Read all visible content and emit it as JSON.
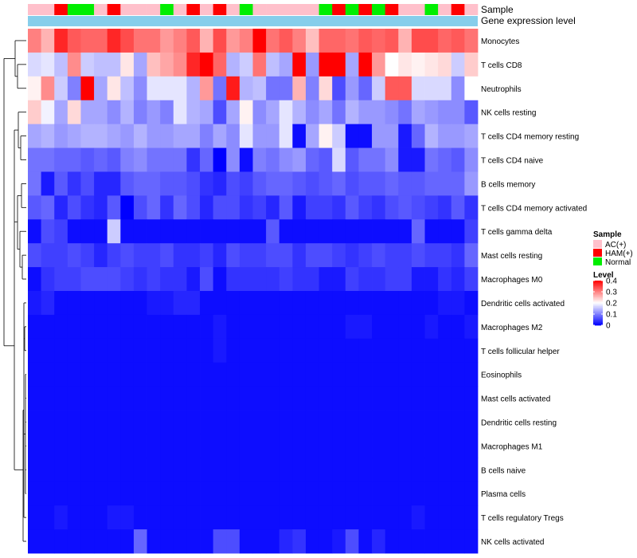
{
  "chart_data": {
    "type": "heatmap",
    "title": "",
    "annotation_tracks": [
      "Sample",
      "Gene expression level"
    ],
    "sample_groups": [
      "AC(+)",
      "AC(+)",
      "HAM(+)",
      "Normal",
      "Normal",
      "AC(+)",
      "HAM(+)",
      "AC(+)",
      "AC(+)",
      "AC(+)",
      "Normal",
      "AC(+)",
      "HAM(+)",
      "AC(+)",
      "HAM(+)",
      "AC(+)",
      "Normal",
      "AC(+)",
      "AC(+)",
      "AC(+)",
      "AC(+)",
      "AC(+)",
      "Normal",
      "HAM(+)",
      "Normal",
      "HAM(+)",
      "Normal",
      "HAM(+)",
      "AC(+)",
      "AC(+)",
      "Normal",
      "AC(+)",
      "HAM(+)",
      "AC(+)"
    ],
    "expression_level_track": "uniform",
    "rows": [
      "Monocytes",
      "T cells CD8",
      "Neutrophils",
      "NK cells resting",
      "T cells CD4 memory resting",
      "T cells CD4 naive",
      "B cells memory",
      "T cells CD4 memory activated",
      "T cells gamma delta",
      "Mast cells resting",
      "Macrophages M0",
      "Dendritic cells activated",
      "Macrophages M2",
      "T cells follicular helper",
      "Eosinophils",
      "Mast cells activated",
      "Dendritic cells resting",
      "Macrophages M1",
      "B cells naive",
      "Plasma cells",
      "T cells regulatory  Tregs",
      "NK cells activated"
    ],
    "values": [
      [
        0.3,
        0.26,
        0.37,
        0.33,
        0.32,
        0.32,
        0.37,
        0.34,
        0.31,
        0.31,
        0.28,
        0.3,
        0.33,
        0.26,
        0.34,
        0.28,
        0.3,
        0.4,
        0.31,
        0.33,
        0.3,
        0.25,
        0.32,
        0.32,
        0.31,
        0.33,
        0.32,
        0.33,
        0.26,
        0.34,
        0.34,
        0.32,
        0.33,
        0.31
      ],
      [
        0.17,
        0.18,
        0.15,
        0.29,
        0.16,
        0.15,
        0.15,
        0.22,
        0.13,
        0.25,
        0.27,
        0.29,
        0.37,
        0.4,
        0.32,
        0.14,
        0.16,
        0.31,
        0.15,
        0.13,
        0.4,
        0.12,
        0.4,
        0.4,
        0.13,
        0.4,
        0.28,
        0.2,
        0.22,
        0.21,
        0.22,
        0.23,
        0.16,
        0.24
      ],
      [
        0.21,
        0.29,
        0.16,
        0.1,
        0.4,
        0.13,
        0.22,
        0.15,
        0.11,
        0.18,
        0.18,
        0.18,
        0.14,
        0.28,
        0.09,
        0.38,
        0.14,
        0.15,
        0.09,
        0.09,
        0.26,
        0.1,
        0.23,
        0.06,
        0.12,
        0.08,
        0.16,
        0.33,
        0.33,
        0.17,
        0.17,
        0.17,
        0.11,
        0.2
      ],
      [
        0.24,
        0.19,
        0.13,
        0.23,
        0.13,
        0.13,
        0.11,
        0.14,
        0.1,
        0.12,
        0.1,
        0.18,
        0.14,
        0.13,
        0.06,
        0.13,
        0.21,
        0.11,
        0.13,
        0.18,
        0.14,
        0.11,
        0.13,
        0.09,
        0.14,
        0.12,
        0.12,
        0.11,
        0.09,
        0.13,
        0.12,
        0.11,
        0.11,
        0.07
      ],
      [
        0.13,
        0.14,
        0.12,
        0.13,
        0.14,
        0.14,
        0.13,
        0.12,
        0.14,
        0.12,
        0.12,
        0.13,
        0.13,
        0.1,
        0.13,
        0.11,
        0.18,
        0.12,
        0.12,
        0.18,
        0.01,
        0.13,
        0.21,
        0.16,
        0.01,
        0.01,
        0.12,
        0.12,
        0.02,
        0.08,
        0.14,
        0.12,
        0.12,
        0.13
      ],
      [
        0.09,
        0.09,
        0.08,
        0.08,
        0.07,
        0.08,
        0.07,
        0.1,
        0.11,
        0.09,
        0.09,
        0.09,
        0.04,
        0.08,
        0.0,
        0.11,
        0.01,
        0.1,
        0.09,
        0.11,
        0.12,
        0.08,
        0.07,
        0.17,
        0.07,
        0.09,
        0.09,
        0.11,
        0.02,
        0.02,
        0.09,
        0.08,
        0.07,
        0.11
      ],
      [
        0.09,
        0.02,
        0.07,
        0.04,
        0.06,
        0.03,
        0.03,
        0.07,
        0.08,
        0.08,
        0.07,
        0.07,
        0.06,
        0.04,
        0.03,
        0.06,
        0.05,
        0.07,
        0.08,
        0.08,
        0.07,
        0.06,
        0.07,
        0.08,
        0.06,
        0.07,
        0.07,
        0.08,
        0.07,
        0.07,
        0.08,
        0.08,
        0.08,
        0.12
      ],
      [
        0.07,
        0.08,
        0.03,
        0.06,
        0.04,
        0.03,
        0.07,
        0.0,
        0.06,
        0.08,
        0.04,
        0.08,
        0.06,
        0.03,
        0.06,
        0.06,
        0.04,
        0.05,
        0.03,
        0.07,
        0.02,
        0.05,
        0.05,
        0.04,
        0.07,
        0.05,
        0.04,
        0.06,
        0.07,
        0.06,
        0.05,
        0.04,
        0.07,
        0.04
      ],
      [
        0.01,
        0.06,
        0.05,
        0.01,
        0.01,
        0.01,
        0.16,
        0.01,
        0.01,
        0.01,
        0.01,
        0.01,
        0.01,
        0.01,
        0.01,
        0.01,
        0.01,
        0.01,
        0.07,
        0.01,
        0.01,
        0.01,
        0.01,
        0.01,
        0.01,
        0.01,
        0.01,
        0.01,
        0.01,
        0.08,
        0.01,
        0.01,
        0.01,
        0.05
      ],
      [
        0.06,
        0.05,
        0.05,
        0.06,
        0.05,
        0.03,
        0.05,
        0.06,
        0.05,
        0.05,
        0.06,
        0.04,
        0.04,
        0.05,
        0.03,
        0.06,
        0.05,
        0.05,
        0.06,
        0.06,
        0.04,
        0.06,
        0.06,
        0.05,
        0.04,
        0.05,
        0.06,
        0.05,
        0.05,
        0.06,
        0.05,
        0.05,
        0.04,
        0.08
      ],
      [
        0.01,
        0.04,
        0.05,
        0.05,
        0.06,
        0.06,
        0.06,
        0.05,
        0.04,
        0.05,
        0.04,
        0.04,
        0.02,
        0.06,
        0.01,
        0.04,
        0.04,
        0.04,
        0.04,
        0.05,
        0.04,
        0.04,
        0.02,
        0.02,
        0.05,
        0.04,
        0.04,
        0.05,
        0.05,
        0.02,
        0.02,
        0.04,
        0.03,
        0.05
      ],
      [
        0.02,
        0.03,
        0.01,
        0.01,
        0.01,
        0.01,
        0.01,
        0.01,
        0.01,
        0.02,
        0.02,
        0.03,
        0.03,
        0.01,
        0.01,
        0.01,
        0.01,
        0.01,
        0.01,
        0.01,
        0.01,
        0.01,
        0.01,
        0.01,
        0.01,
        0.01,
        0.01,
        0.01,
        0.01,
        0.01,
        0.01,
        0.02,
        0.02,
        0.01
      ],
      [
        0.01,
        0.01,
        0.01,
        0.01,
        0.01,
        0.01,
        0.01,
        0.01,
        0.01,
        0.01,
        0.01,
        0.01,
        0.01,
        0.01,
        0.02,
        0.01,
        0.01,
        0.01,
        0.01,
        0.01,
        0.01,
        0.01,
        0.01,
        0.01,
        0.02,
        0.02,
        0.01,
        0.01,
        0.01,
        0.01,
        0.02,
        0.01,
        0.01,
        0.02
      ],
      [
        0.01,
        0.01,
        0.01,
        0.01,
        0.01,
        0.01,
        0.01,
        0.01,
        0.01,
        0.01,
        0.01,
        0.01,
        0.01,
        0.01,
        0.02,
        0.01,
        0.01,
        0.01,
        0.01,
        0.01,
        0.01,
        0.01,
        0.01,
        0.01,
        0.01,
        0.01,
        0.01,
        0.01,
        0.01,
        0.01,
        0.01,
        0.01,
        0.01,
        0.01
      ],
      [
        0.01,
        0.01,
        0.01,
        0.01,
        0.01,
        0.01,
        0.01,
        0.01,
        0.01,
        0.01,
        0.01,
        0.01,
        0.01,
        0.01,
        0.01,
        0.01,
        0.01,
        0.01,
        0.01,
        0.01,
        0.01,
        0.01,
        0.01,
        0.01,
        0.01,
        0.01,
        0.01,
        0.01,
        0.01,
        0.01,
        0.01,
        0.01,
        0.01,
        0.01
      ],
      [
        0.01,
        0.01,
        0.01,
        0.01,
        0.01,
        0.01,
        0.01,
        0.01,
        0.01,
        0.01,
        0.01,
        0.01,
        0.01,
        0.01,
        0.01,
        0.01,
        0.01,
        0.01,
        0.01,
        0.01,
        0.01,
        0.01,
        0.01,
        0.01,
        0.01,
        0.01,
        0.01,
        0.01,
        0.01,
        0.01,
        0.01,
        0.01,
        0.01,
        0.01
      ],
      [
        0.01,
        0.01,
        0.01,
        0.01,
        0.01,
        0.01,
        0.01,
        0.01,
        0.01,
        0.01,
        0.01,
        0.01,
        0.01,
        0.01,
        0.01,
        0.01,
        0.01,
        0.01,
        0.01,
        0.01,
        0.01,
        0.01,
        0.01,
        0.01,
        0.01,
        0.01,
        0.01,
        0.01,
        0.01,
        0.01,
        0.01,
        0.01,
        0.01,
        0.01
      ],
      [
        0.01,
        0.01,
        0.01,
        0.01,
        0.01,
        0.01,
        0.01,
        0.01,
        0.01,
        0.01,
        0.01,
        0.01,
        0.01,
        0.01,
        0.01,
        0.01,
        0.01,
        0.01,
        0.01,
        0.01,
        0.01,
        0.01,
        0.01,
        0.01,
        0.01,
        0.01,
        0.01,
        0.01,
        0.01,
        0.01,
        0.01,
        0.01,
        0.01,
        0.01
      ],
      [
        0.01,
        0.01,
        0.01,
        0.01,
        0.01,
        0.01,
        0.01,
        0.01,
        0.01,
        0.01,
        0.01,
        0.01,
        0.01,
        0.01,
        0.01,
        0.01,
        0.01,
        0.01,
        0.01,
        0.01,
        0.01,
        0.01,
        0.01,
        0.01,
        0.01,
        0.01,
        0.01,
        0.01,
        0.01,
        0.01,
        0.01,
        0.01,
        0.01,
        0.01
      ],
      [
        0.01,
        0.01,
        0.01,
        0.01,
        0.01,
        0.01,
        0.01,
        0.01,
        0.01,
        0.01,
        0.01,
        0.01,
        0.01,
        0.01,
        0.01,
        0.01,
        0.01,
        0.01,
        0.01,
        0.01,
        0.01,
        0.01,
        0.01,
        0.01,
        0.01,
        0.01,
        0.01,
        0.01,
        0.01,
        0.01,
        0.01,
        0.01,
        0.01,
        0.01
      ],
      [
        0.01,
        0.01,
        0.02,
        0.01,
        0.01,
        0.01,
        0.02,
        0.02,
        0.01,
        0.01,
        0.01,
        0.01,
        0.01,
        0.01,
        0.01,
        0.01,
        0.01,
        0.01,
        0.01,
        0.01,
        0.01,
        0.01,
        0.01,
        0.01,
        0.01,
        0.01,
        0.01,
        0.01,
        0.01,
        0.02,
        0.01,
        0.01,
        0.01,
        0.01
      ],
      [
        0.01,
        0.01,
        0.01,
        0.01,
        0.01,
        0.01,
        0.01,
        0.01,
        0.08,
        0.01,
        0.01,
        0.01,
        0.01,
        0.01,
        0.06,
        0.06,
        0.01,
        0.01,
        0.01,
        0.03,
        0.04,
        0.01,
        0.01,
        0.02,
        0.06,
        0.01,
        0.03,
        0.01,
        0.01,
        0.01,
        0.01,
        0.01,
        0.01,
        0.01
      ]
    ],
    "color_scale": {
      "min": 0,
      "max": 0.4,
      "low": "#0000ff",
      "mid": "#ffffff",
      "high": "#ff0000",
      "midpoint": 0.2
    },
    "legend": {
      "sample_title": "Sample",
      "sample_items": [
        {
          "label": "AC(+)",
          "color": "#ffc0cb"
        },
        {
          "label": "HAM(+)",
          "color": "#ff0000"
        },
        {
          "label": "Normal",
          "color": "#00ee00"
        }
      ],
      "level_title": "Level",
      "level_ticks": [
        "0.4",
        "0.3",
        "0.2",
        "0.1",
        "0"
      ],
      "level_tick_values": [
        0.4,
        0.3,
        0.2,
        0.1,
        0
      ],
      "placement": "right"
    },
    "expression_track_color": "#87ceeb",
    "dendrogram": "rows"
  }
}
